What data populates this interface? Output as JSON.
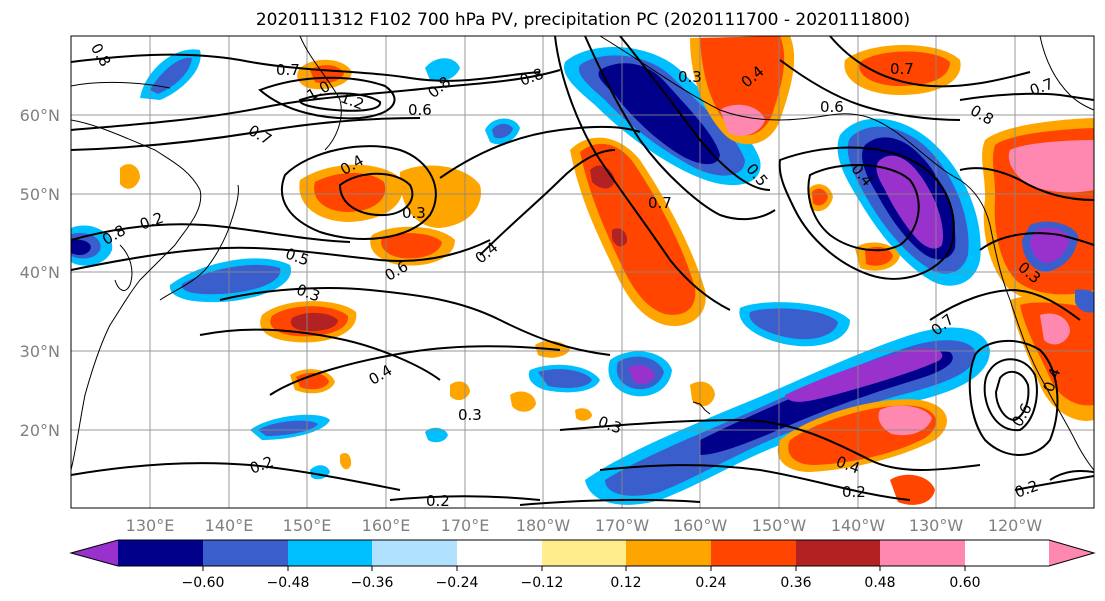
{
  "title": "2020111312 F102 700 hPa PV, precipitation PC (2020111700 - 2020111800)",
  "map": {
    "lat_labels": [
      "60°N",
      "50°N",
      "40°N",
      "30°N",
      "20°N"
    ],
    "lon_labels": [
      "130°E",
      "140°E",
      "150°E",
      "160°E",
      "170°E",
      "180°W",
      "170°W",
      "160°W",
      "150°W",
      "140°W",
      "130°W",
      "120°W"
    ],
    "contour_labels": [
      "0.8",
      "0.7",
      "1.0",
      "1.2",
      "0.8",
      "0.6",
      "0.8",
      "0.3",
      "0.4",
      "0.6",
      "0.7",
      "0.8",
      "0.7",
      "0.4",
      "0.7",
      "0.5",
      "0.4",
      "0.3",
      "0.4",
      "0.8",
      "0.7",
      "0.5",
      "0.3",
      "0.6",
      "0.4",
      "0.7",
      "0.4",
      "0.3",
      "0.3",
      "0.4",
      "0.2",
      "0.2",
      "0.2",
      "0.2",
      "0.2",
      "0.6",
      "0.3"
    ]
  },
  "colorbar": {
    "ticks": [
      "−0.60",
      "−0.48",
      "−0.36",
      "−0.24",
      "−0.12",
      "0.12",
      "0.24",
      "0.36",
      "0.48",
      "0.60"
    ],
    "colors": [
      "#9932cc",
      "#00008b",
      "#3a5fcd",
      "#00bfff",
      "#b0e2ff",
      "#ffffff",
      "#ffec8b",
      "#ffa500",
      "#ff4500",
      "#b22222",
      "#ff88b0"
    ]
  }
}
